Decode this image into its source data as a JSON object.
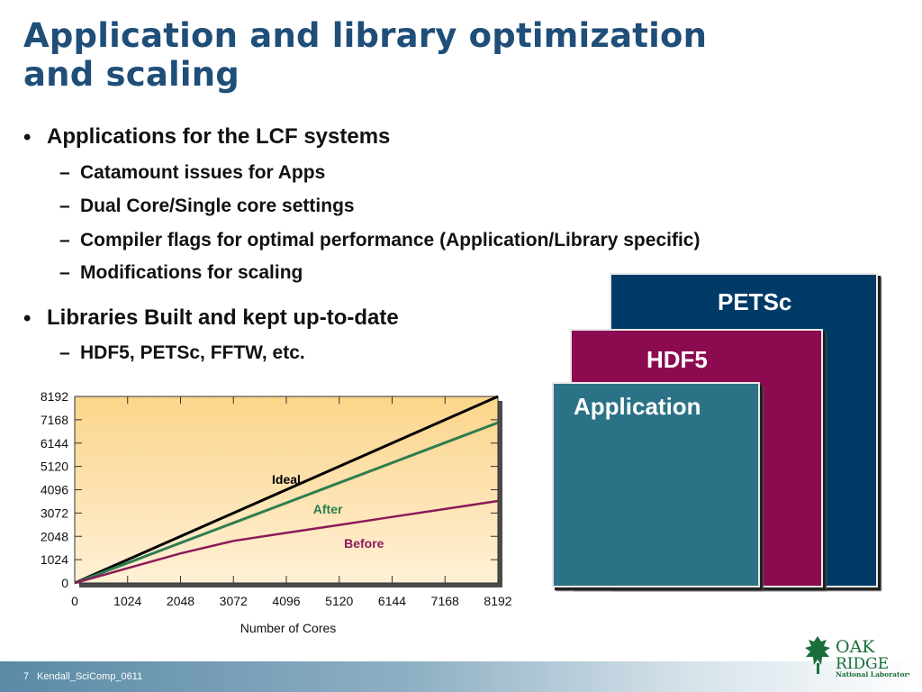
{
  "title_lines": [
    "Application and library optimization",
    "and scaling"
  ],
  "bullets": {
    "apps": {
      "label": "Applications for the LCF systems",
      "subs": [
        "Catamount issues for Apps",
        "Dual Core/Single core settings",
        "Compiler flags for optimal performance (Application/Library specific)",
        "Modifications for scaling"
      ]
    },
    "libs": {
      "label": "Libraries Built and kept up-to-date",
      "subs": [
        "HDF5, PETSc, FFTW, etc."
      ]
    },
    "bullet_glyph": "•",
    "dash_glyph": "–"
  },
  "stack": {
    "petsc": {
      "label": "PETSc",
      "color": "#003a66"
    },
    "hdf5": {
      "label": "HDF5",
      "color": "#8b0a50"
    },
    "application": {
      "label": "Application",
      "color": "#2b7286"
    }
  },
  "chart_data": {
    "type": "line",
    "x": [
      0,
      1024,
      2048,
      3072,
      4096,
      5120,
      6144,
      7168,
      8192
    ],
    "xlabel": "Number of Cores",
    "ylabel": "",
    "xlim": [
      0,
      8192
    ],
    "ylim": [
      0,
      8192
    ],
    "xticks": [
      "0",
      "1024",
      "2048",
      "3072",
      "4096",
      "5120",
      "6144",
      "7168",
      "8192"
    ],
    "yticks": [
      "0",
      "1024",
      "2048",
      "3072",
      "4096",
      "5120",
      "6144",
      "7168",
      "8192"
    ],
    "series": [
      {
        "name": "Ideal",
        "color": "#000000",
        "values": [
          0,
          1024,
          2048,
          3072,
          4096,
          5120,
          6144,
          7168,
          8192
        ]
      },
      {
        "name": "After",
        "color": "#2e7d4f",
        "values": [
          0,
          880,
          1760,
          2640,
          3520,
          4400,
          5280,
          6160,
          7040
        ]
      },
      {
        "name": "Before",
        "color": "#8b1a5a",
        "values": [
          0,
          650,
          1300,
          1850,
          2200,
          2550,
          2900,
          3250,
          3600
        ]
      }
    ],
    "grid": false,
    "background": "gradient from #fbd58a (top) to #fff0d6 (bottom)"
  },
  "footer": {
    "page": "7",
    "label": "Kendall_SciComp_0611"
  },
  "logo": {
    "line1": "OAK",
    "line2": "RIDGE",
    "line3": "National Laboratory",
    "color": "#1a6e3a"
  }
}
